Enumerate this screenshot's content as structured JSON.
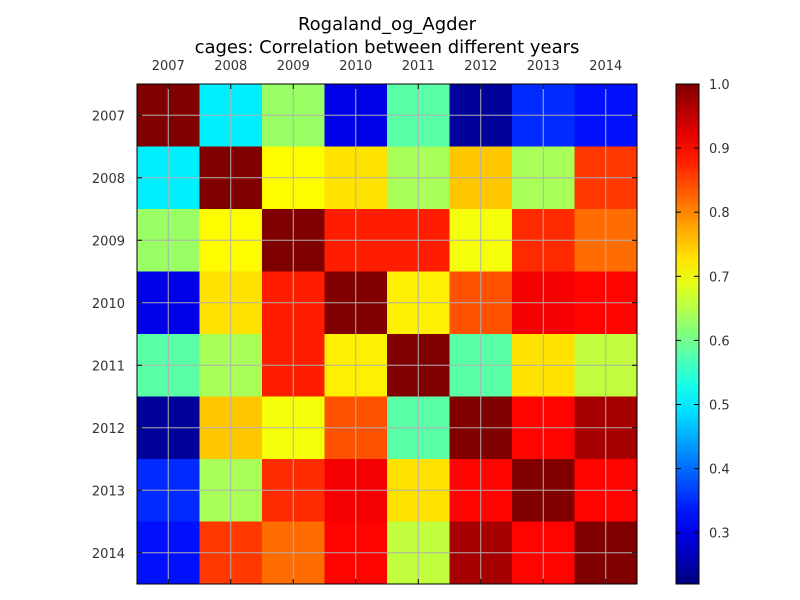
{
  "chart_data": {
    "type": "heatmap",
    "title": "Rogaland_og_Agder",
    "subtitle": "cages: Correlation between different years",
    "xlabels": [
      "2007",
      "2008",
      "2009",
      "2010",
      "2011",
      "2012",
      "2013",
      "2014"
    ],
    "ylabels": [
      "2007",
      "2008",
      "2009",
      "2010",
      "2011",
      "2012",
      "2013",
      "2014"
    ],
    "values": [
      [
        1.0,
        0.5,
        0.63,
        0.3,
        0.58,
        0.24,
        0.35,
        0.33
      ],
      [
        0.5,
        1.0,
        0.71,
        0.73,
        0.64,
        0.75,
        0.64,
        0.86
      ],
      [
        0.63,
        0.71,
        1.0,
        0.88,
        0.88,
        0.7,
        0.87,
        0.82
      ],
      [
        0.3,
        0.73,
        0.88,
        1.0,
        0.72,
        0.84,
        0.91,
        0.9
      ],
      [
        0.58,
        0.64,
        0.88,
        0.72,
        1.0,
        0.58,
        0.73,
        0.66
      ],
      [
        0.24,
        0.75,
        0.7,
        0.84,
        0.58,
        1.0,
        0.9,
        0.97
      ],
      [
        0.35,
        0.64,
        0.87,
        0.91,
        0.73,
        0.9,
        1.0,
        0.9
      ],
      [
        0.33,
        0.86,
        0.82,
        0.9,
        0.66,
        0.97,
        0.9,
        1.0
      ]
    ],
    "colormap": "jet",
    "vmin": 0.22,
    "vmax": 1.0,
    "colorbar_ticks": [
      "0.3",
      "0.4",
      "0.5",
      "0.6",
      "0.7",
      "0.8",
      "0.9",
      "1.0"
    ],
    "grid": true
  }
}
